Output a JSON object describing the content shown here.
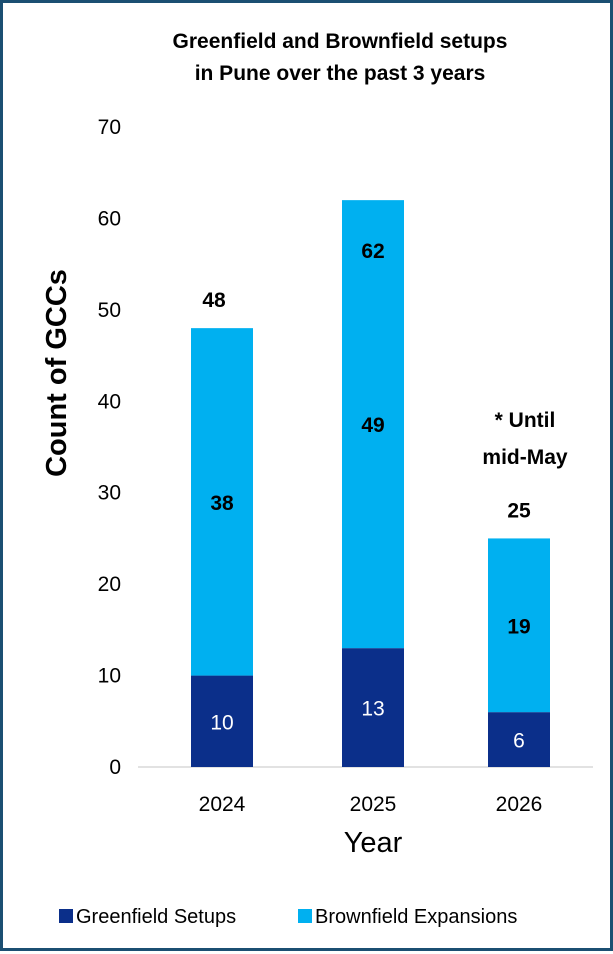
{
  "chart_data": {
    "type": "bar",
    "stacked": true,
    "title_lines": [
      "Greenfield and Brownfield setups",
      "in Pune over the past 3 years"
    ],
    "xlabel": "Year",
    "ylabel": "Count of GCCs",
    "ylim": [
      0,
      70
    ],
    "yticks": [
      0,
      10,
      20,
      30,
      40,
      50,
      60,
      70
    ],
    "categories": [
      "2024",
      "2025",
      "2026"
    ],
    "series": [
      {
        "name": "Greenfield Setups",
        "values": [
          10,
          13,
          6
        ],
        "color": "#0b2f8a"
      },
      {
        "name": "Brownfield Expansions",
        "values": [
          38,
          49,
          19
        ],
        "color": "#00b0f0"
      }
    ],
    "totals": [
      48,
      62,
      25
    ],
    "annotation_lines": [
      "* Until",
      "mid-May"
    ],
    "legend_position": "bottom",
    "grid": false
  }
}
